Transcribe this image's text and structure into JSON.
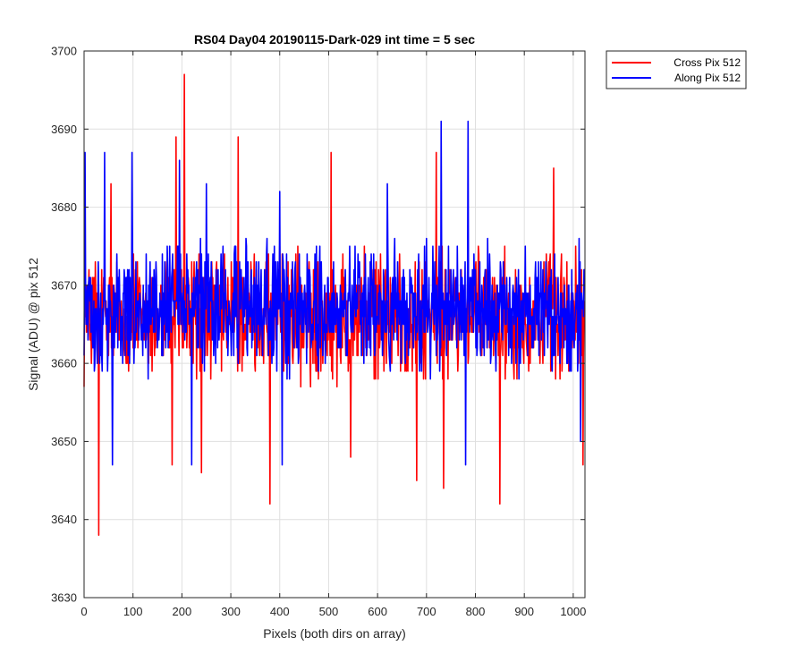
{
  "chart_data": {
    "type": "line",
    "title": "RS04 Day04 20190115-Dark-029 int time = 5 sec",
    "xlabel": "Pixels (both dirs on array)",
    "ylabel": "Signal (ADU) @ pix 512",
    "xlim": [
      0,
      1024
    ],
    "ylim": [
      3630,
      3700
    ],
    "xticks": [
      "0",
      "100",
      "200",
      "300",
      "400",
      "500",
      "600",
      "700",
      "800",
      "900",
      "1000"
    ],
    "yticks": [
      "3630",
      "3640",
      "3650",
      "3660",
      "3670",
      "3680",
      "3690",
      "3700"
    ],
    "grid": true,
    "legend_position": "outside top-right",
    "series": [
      {
        "name": "Cross Pix 512",
        "color": "#ff0000",
        "baseline": 3666,
        "spread": 5,
        "points_count": 1024,
        "peaks": [
          {
            "x": 30,
            "y": 3638
          },
          {
            "x": 55,
            "y": 3683
          },
          {
            "x": 180,
            "y": 3647
          },
          {
            "x": 188,
            "y": 3689
          },
          {
            "x": 205,
            "y": 3697
          },
          {
            "x": 240,
            "y": 3646
          },
          {
            "x": 315,
            "y": 3689
          },
          {
            "x": 380,
            "y": 3642
          },
          {
            "x": 505,
            "y": 3687
          },
          {
            "x": 545,
            "y": 3648
          },
          {
            "x": 680,
            "y": 3645
          },
          {
            "x": 720,
            "y": 3687
          },
          {
            "x": 735,
            "y": 3644
          },
          {
            "x": 850,
            "y": 3642
          },
          {
            "x": 960,
            "y": 3685
          },
          {
            "x": 1020,
            "y": 3647
          }
        ]
      },
      {
        "name": "Along Pix 512",
        "color": "#0000ff",
        "baseline": 3667,
        "spread": 5,
        "points_count": 1024,
        "peaks": [
          {
            "x": 2,
            "y": 3687
          },
          {
            "x": 42,
            "y": 3687
          },
          {
            "x": 58,
            "y": 3647
          },
          {
            "x": 98,
            "y": 3687
          },
          {
            "x": 195,
            "y": 3686
          },
          {
            "x": 220,
            "y": 3647
          },
          {
            "x": 250,
            "y": 3683
          },
          {
            "x": 400,
            "y": 3682
          },
          {
            "x": 405,
            "y": 3647
          },
          {
            "x": 620,
            "y": 3683
          },
          {
            "x": 730,
            "y": 3691
          },
          {
            "x": 780,
            "y": 3647
          },
          {
            "x": 785,
            "y": 3691
          },
          {
            "x": 1015,
            "y": 3650
          }
        ]
      }
    ]
  }
}
